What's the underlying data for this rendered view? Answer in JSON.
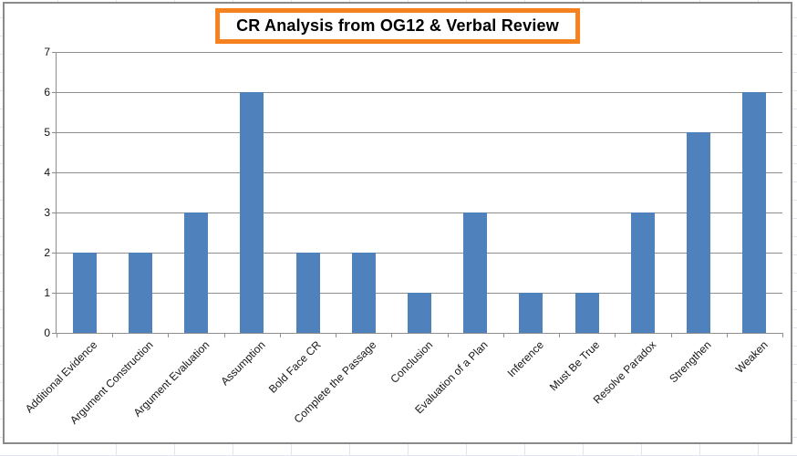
{
  "chart_data": {
    "type": "bar",
    "title": "CR Analysis from OG12 & Verbal Review",
    "categories": [
      "Additional Evidence",
      "Argument Construction",
      "Argument Evaluation",
      "Assumption",
      "Bold Face CR",
      "Complete the Passage",
      "Conclusion",
      "Evaluation of a Plan",
      "Inference",
      "Must Be True",
      "Resolve Paradox",
      "Strengthen",
      "Weaken"
    ],
    "values": [
      2,
      2,
      3,
      6,
      2,
      2,
      1,
      3,
      1,
      1,
      3,
      5,
      6
    ],
    "xlabel": "",
    "ylabel": "",
    "ylim": [
      0,
      7
    ],
    "yticks": [
      0,
      1,
      2,
      3,
      4,
      5,
      6,
      7
    ],
    "grid": true,
    "legend": false,
    "colors": {
      "bar": "#4f81bd",
      "title_border": "#f5821f",
      "gridline": "#8e8e8e",
      "axis": "#8e8e8e",
      "frame": "#8a8a8a",
      "text": "#111111"
    }
  }
}
